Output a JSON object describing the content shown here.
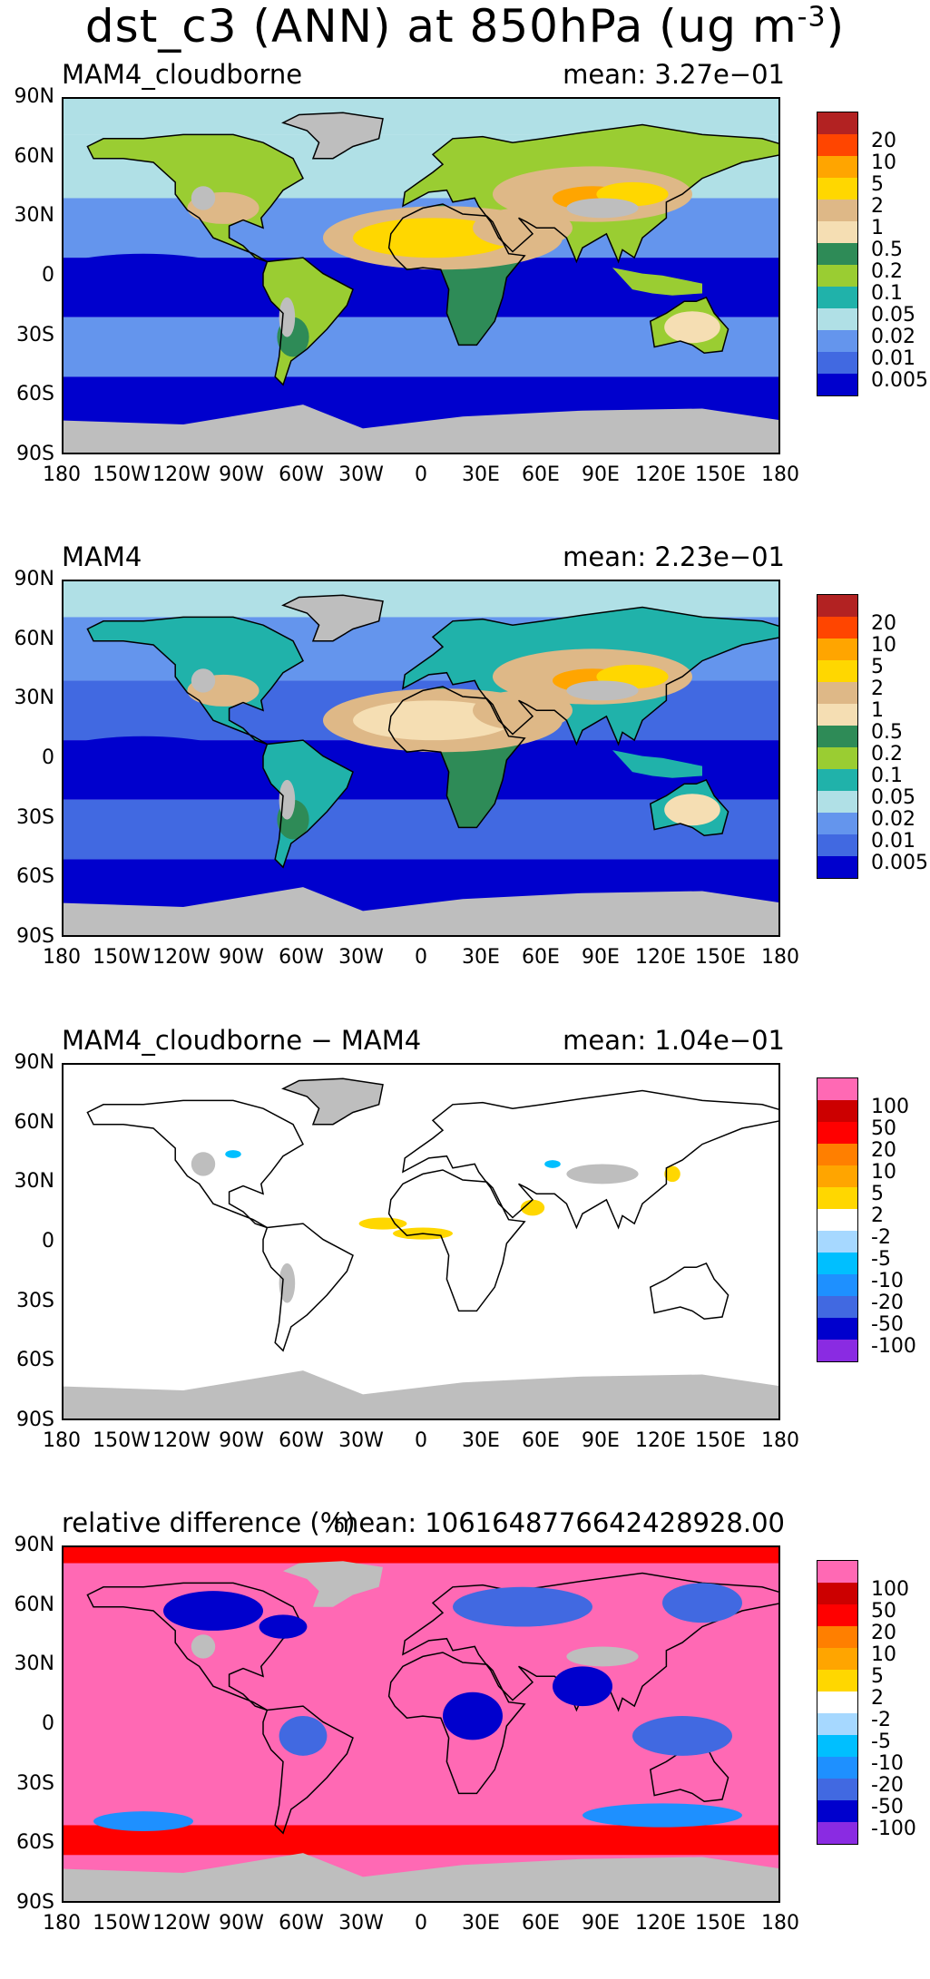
{
  "title": {
    "text": "dst_c3 (ANN) at 850hPa (ug m",
    "exp": "-3",
    "close": ")"
  },
  "lat_labels": [
    "90N",
    "60N",
    "30N",
    "0",
    "30S",
    "60S",
    "90S"
  ],
  "lon_labels": [
    "180",
    "150W",
    "120W",
    "90W",
    "60W",
    "30W",
    "0",
    "30E",
    "60E",
    "90E",
    "120E",
    "150E",
    "180"
  ],
  "conc_scale": {
    "labels": [
      "20",
      "10",
      "5",
      "2",
      "1",
      "0.5",
      "0.2",
      "0.1",
      "0.05",
      "0.02",
      "0.01",
      "0.005"
    ],
    "colors": [
      "#b22222",
      "#ff4500",
      "#ffa500",
      "#ffd700",
      "#deb887",
      "#f5deb3",
      "#2e8b57",
      "#9acd32",
      "#20b2aa",
      "#b0e0e6",
      "#6495ed",
      "#4169e1",
      "#0000cd"
    ]
  },
  "diff_scale": {
    "labels": [
      "100",
      "50",
      "20",
      "10",
      "5",
      "2",
      "-2",
      "-5",
      "-10",
      "-20",
      "-50",
      "-100"
    ],
    "colors": [
      "#ff69b4",
      "#cc0000",
      "#ff0000",
      "#ff7f00",
      "#ffa500",
      "#ffd700",
      "#ffffff",
      "#a6d8ff",
      "#00bfff",
      "#1e90ff",
      "#4169e1",
      "#0000cd",
      "#8a2be2"
    ]
  },
  "panels": [
    {
      "label": "MAM4_cloudborne",
      "mean": "mean:  3.27e−01",
      "scale": "conc",
      "style": "conc_high"
    },
    {
      "label": "MAM4",
      "mean": "mean:  2.23e−01",
      "scale": "conc",
      "style": "conc_low"
    },
    {
      "label": "MAM4_cloudborne − MAM4",
      "mean": "mean:  1.04e−01",
      "scale": "diff",
      "style": "diff"
    },
    {
      "label": "relative difference (%)",
      "mean": "mean:  1061648776642428928.00",
      "scale": "diff",
      "style": "reldiff"
    }
  ]
}
